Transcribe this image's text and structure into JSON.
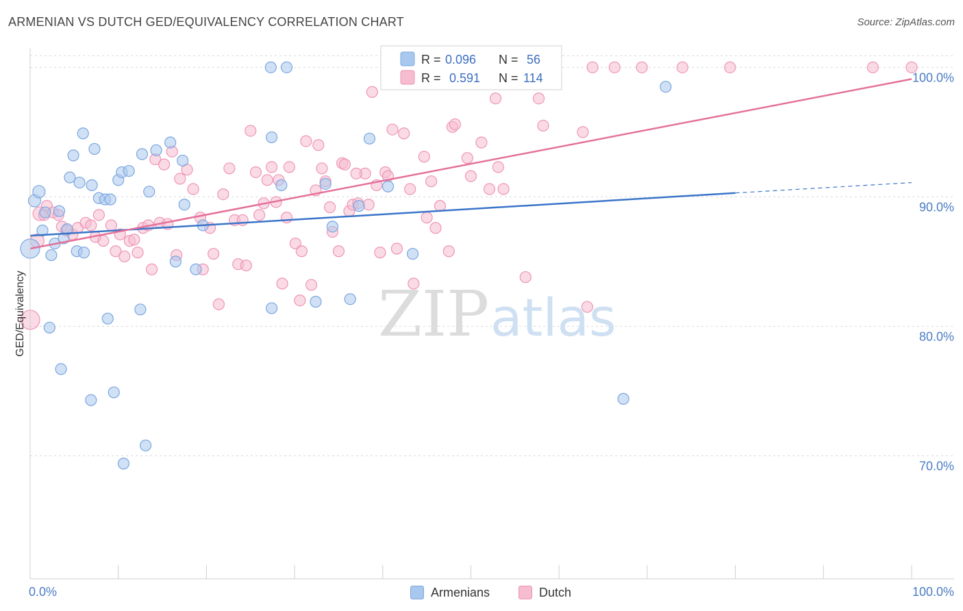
{
  "title": "ARMENIAN VS DUTCH GED/EQUIVALENCY CORRELATION CHART",
  "source": "Source: ZipAtlas.com",
  "watermark": {
    "zip": "ZIP",
    "atlas": "atlas"
  },
  "legend": {
    "r_label": "R =",
    "n_label": "N =",
    "armenians": {
      "r": "0.096",
      "n": "56"
    },
    "dutch": {
      "r": "0.591",
      "n": "114"
    }
  },
  "bottom_legend": {
    "armenians": "Armenians",
    "dutch": "Dutch"
  },
  "colors": {
    "armenians_fill": "#a9c8ee",
    "armenians_stroke": "#7aa6de",
    "armenians_line": "#3a74c8",
    "dutch_fill": "#f6bcd0",
    "dutch_stroke": "#ee95b5",
    "dutch_line": "#e4709a",
    "grid": "#d8d8d8",
    "tick_text": "#4a7cc4"
  },
  "chart_data": {
    "type": "scatter",
    "title": "ARMENIAN VS DUTCH GED/EQUIVALENCY CORRELATION CHART",
    "xlabel": "",
    "ylabel": "GED/Equivalency",
    "xlim": [
      0,
      100
    ],
    "ylim": [
      60.5,
      101.5
    ],
    "x_tick_labels": [
      "0.0%",
      "100.0%"
    ],
    "y_ticks": [
      {
        "value": 100,
        "label": "100.0%"
      },
      {
        "value": 90,
        "label": "90.0%"
      },
      {
        "value": 80,
        "label": "80.0%"
      },
      {
        "value": 70,
        "label": "70.0%"
      }
    ],
    "series": [
      {
        "name": "Armenians",
        "r": 0.096,
        "n": 56,
        "trend": {
          "x0": 0,
          "y0": 87.0,
          "x1": 80,
          "y1": 90.3,
          "dash_to_x": 100,
          "dash_to_y": 91.1
        },
        "points": [
          [
            0.0,
            86.0,
            28
          ],
          [
            0.5,
            89.7,
            18
          ],
          [
            1.0,
            90.4,
            18
          ],
          [
            1.4,
            87.4,
            16
          ],
          [
            1.7,
            88.8,
            16
          ],
          [
            2.2,
            79.9,
            16
          ],
          [
            2.4,
            85.5,
            16
          ],
          [
            2.8,
            86.4,
            16
          ],
          [
            3.3,
            88.9,
            16
          ],
          [
            3.5,
            76.7,
            16
          ],
          [
            3.8,
            86.8,
            16
          ],
          [
            4.2,
            87.5,
            16
          ],
          [
            4.5,
            91.5,
            16
          ],
          [
            4.9,
            93.2,
            16
          ],
          [
            5.3,
            85.8,
            16
          ],
          [
            5.6,
            91.1,
            16
          ],
          [
            6.1,
            85.7,
            16
          ],
          [
            6.0,
            94.9,
            16
          ],
          [
            6.9,
            74.3,
            16
          ],
          [
            7.0,
            90.9,
            16
          ],
          [
            7.3,
            93.7,
            16
          ],
          [
            7.8,
            89.9,
            16
          ],
          [
            8.5,
            89.8,
            16
          ],
          [
            8.8,
            80.6,
            16
          ],
          [
            9.1,
            89.8,
            16
          ],
          [
            9.5,
            74.9,
            16
          ],
          [
            10.0,
            91.3,
            16
          ],
          [
            10.4,
            91.9,
            16
          ],
          [
            10.6,
            69.4,
            16
          ],
          [
            11.2,
            92.0,
            16
          ],
          [
            12.5,
            81.3,
            16
          ],
          [
            12.7,
            93.3,
            16
          ],
          [
            13.1,
            70.8,
            16
          ],
          [
            13.5,
            90.4,
            16
          ],
          [
            14.3,
            93.6,
            16
          ],
          [
            15.9,
            94.2,
            16
          ],
          [
            16.5,
            85.0,
            16
          ],
          [
            17.3,
            92.8,
            16
          ],
          [
            17.5,
            89.4,
            16
          ],
          [
            18.8,
            84.4,
            16
          ],
          [
            19.6,
            87.8,
            16
          ],
          [
            27.3,
            100.0,
            16
          ],
          [
            27.4,
            94.6,
            16
          ],
          [
            27.4,
            81.4,
            16
          ],
          [
            28.5,
            90.9,
            16
          ],
          [
            29.1,
            100.0,
            16
          ],
          [
            32.4,
            81.9,
            16
          ],
          [
            33.5,
            91.0,
            16
          ],
          [
            34.3,
            87.7,
            16
          ],
          [
            37.3,
            89.3,
            16
          ],
          [
            36.3,
            82.1,
            16
          ],
          [
            38.5,
            94.5,
            16
          ],
          [
            40.6,
            90.8,
            16
          ],
          [
            43.4,
            85.6,
            16
          ],
          [
            67.3,
            74.4,
            16
          ],
          [
            72.1,
            98.5,
            16
          ]
        ]
      },
      {
        "name": "Dutch",
        "r": 0.591,
        "n": 114,
        "trend": {
          "x0": 0,
          "y0": 86.0,
          "x1": 100,
          "y1": 99.1
        },
        "points": [
          [
            0.0,
            80.5,
            28
          ],
          [
            0.8,
            86.6,
            20
          ],
          [
            1.1,
            88.7,
            20
          ],
          [
            1.6,
            88.6,
            16
          ],
          [
            1.9,
            89.3,
            16
          ],
          [
            2.6,
            88.8,
            16
          ],
          [
            3.2,
            88.6,
            16
          ],
          [
            3.6,
            87.7,
            16
          ],
          [
            4.1,
            87.4,
            16
          ],
          [
            4.8,
            87.1,
            16
          ],
          [
            5.4,
            87.6,
            16
          ],
          [
            6.3,
            88.0,
            16
          ],
          [
            6.9,
            87.8,
            16
          ],
          [
            7.4,
            86.9,
            16
          ],
          [
            7.8,
            88.6,
            16
          ],
          [
            8.3,
            86.6,
            16
          ],
          [
            9.2,
            87.8,
            16
          ],
          [
            9.7,
            85.8,
            16
          ],
          [
            10.2,
            87.1,
            16
          ],
          [
            10.7,
            85.4,
            16
          ],
          [
            11.3,
            86.6,
            16
          ],
          [
            11.8,
            86.7,
            16
          ],
          [
            12.2,
            85.7,
            16
          ],
          [
            12.8,
            87.6,
            16
          ],
          [
            13.4,
            87.8,
            16
          ],
          [
            13.8,
            84.4,
            16
          ],
          [
            14.2,
            92.9,
            16
          ],
          [
            14.7,
            88.0,
            16
          ],
          [
            15.2,
            92.5,
            16
          ],
          [
            15.6,
            87.9,
            16
          ],
          [
            16.1,
            93.5,
            16
          ],
          [
            16.6,
            85.5,
            16
          ],
          [
            17.0,
            91.4,
            16
          ],
          [
            17.8,
            92.1,
            16
          ],
          [
            18.5,
            90.6,
            16
          ],
          [
            19.3,
            88.4,
            16
          ],
          [
            19.6,
            84.4,
            16
          ],
          [
            20.4,
            87.6,
            16
          ],
          [
            20.8,
            85.6,
            16
          ],
          [
            21.4,
            81.7,
            16
          ],
          [
            21.9,
            90.2,
            16
          ],
          [
            22.6,
            92.2,
            16
          ],
          [
            23.2,
            88.2,
            16
          ],
          [
            23.6,
            84.8,
            16
          ],
          [
            24.1,
            88.2,
            16
          ],
          [
            24.5,
            84.7,
            16
          ],
          [
            25.0,
            95.1,
            16
          ],
          [
            25.6,
            91.9,
            16
          ],
          [
            26.0,
            88.6,
            16
          ],
          [
            26.5,
            89.5,
            16
          ],
          [
            26.9,
            91.3,
            16
          ],
          [
            27.4,
            92.3,
            16
          ],
          [
            27.9,
            89.6,
            16
          ],
          [
            28.2,
            91.3,
            16
          ],
          [
            28.6,
            83.3,
            16
          ],
          [
            29.1,
            88.4,
            16
          ],
          [
            29.4,
            92.3,
            16
          ],
          [
            30.1,
            86.4,
            16
          ],
          [
            30.6,
            82.0,
            16
          ],
          [
            30.8,
            85.8,
            16
          ],
          [
            31.3,
            94.3,
            16
          ],
          [
            31.9,
            83.2,
            16
          ],
          [
            32.4,
            90.5,
            16
          ],
          [
            32.7,
            94.0,
            16
          ],
          [
            33.1,
            92.2,
            16
          ],
          [
            33.5,
            91.2,
            16
          ],
          [
            34.0,
            89.2,
            16
          ],
          [
            34.3,
            87.3,
            16
          ],
          [
            35.0,
            85.8,
            16
          ],
          [
            35.4,
            92.6,
            16
          ],
          [
            35.7,
            92.5,
            16
          ],
          [
            36.2,
            88.9,
            16
          ],
          [
            36.6,
            89.4,
            16
          ],
          [
            37.2,
            89.5,
            16
          ],
          [
            38.0,
            91.8,
            16
          ],
          [
            38.4,
            89.4,
            16
          ],
          [
            38.8,
            98.1,
            16
          ],
          [
            39.3,
            90.9,
            16
          ],
          [
            39.7,
            85.7,
            16
          ],
          [
            40.3,
            91.9,
            16
          ],
          [
            40.6,
            91.6,
            16
          ],
          [
            41.1,
            95.2,
            16
          ],
          [
            41.6,
            86.0,
            16
          ],
          [
            42.4,
            94.9,
            16
          ],
          [
            43.1,
            90.6,
            16
          ],
          [
            43.5,
            83.3,
            16
          ],
          [
            44.7,
            93.1,
            16
          ],
          [
            45.0,
            88.4,
            16
          ],
          [
            45.5,
            91.2,
            16
          ],
          [
            46.0,
            87.6,
            16
          ],
          [
            46.5,
            89.3,
            16
          ],
          [
            47.5,
            85.8,
            16
          ],
          [
            47.9,
            95.4,
            16
          ],
          [
            48.2,
            95.6,
            16
          ],
          [
            49.6,
            93.0,
            16
          ],
          [
            50.0,
            91.6,
            16
          ],
          [
            51.2,
            94.2,
            16
          ],
          [
            52.1,
            90.6,
            16
          ],
          [
            52.8,
            97.6,
            16
          ],
          [
            53.1,
            92.3,
            16
          ],
          [
            53.7,
            90.6,
            16
          ],
          [
            56.2,
            83.8,
            16
          ],
          [
            57.7,
            97.6,
            16
          ],
          [
            58.2,
            95.5,
            16
          ],
          [
            62.7,
            95.0,
            16
          ],
          [
            63.2,
            81.5,
            16
          ],
          [
            63.8,
            100.0,
            16
          ],
          [
            66.3,
            100.0,
            16
          ],
          [
            69.4,
            100.0,
            16
          ],
          [
            74.0,
            100.0,
            16
          ],
          [
            79.4,
            100.0,
            16
          ],
          [
            95.6,
            100.0,
            16
          ],
          [
            100.0,
            100.0,
            16
          ],
          [
            37.0,
            91.8,
            16
          ]
        ]
      }
    ]
  }
}
